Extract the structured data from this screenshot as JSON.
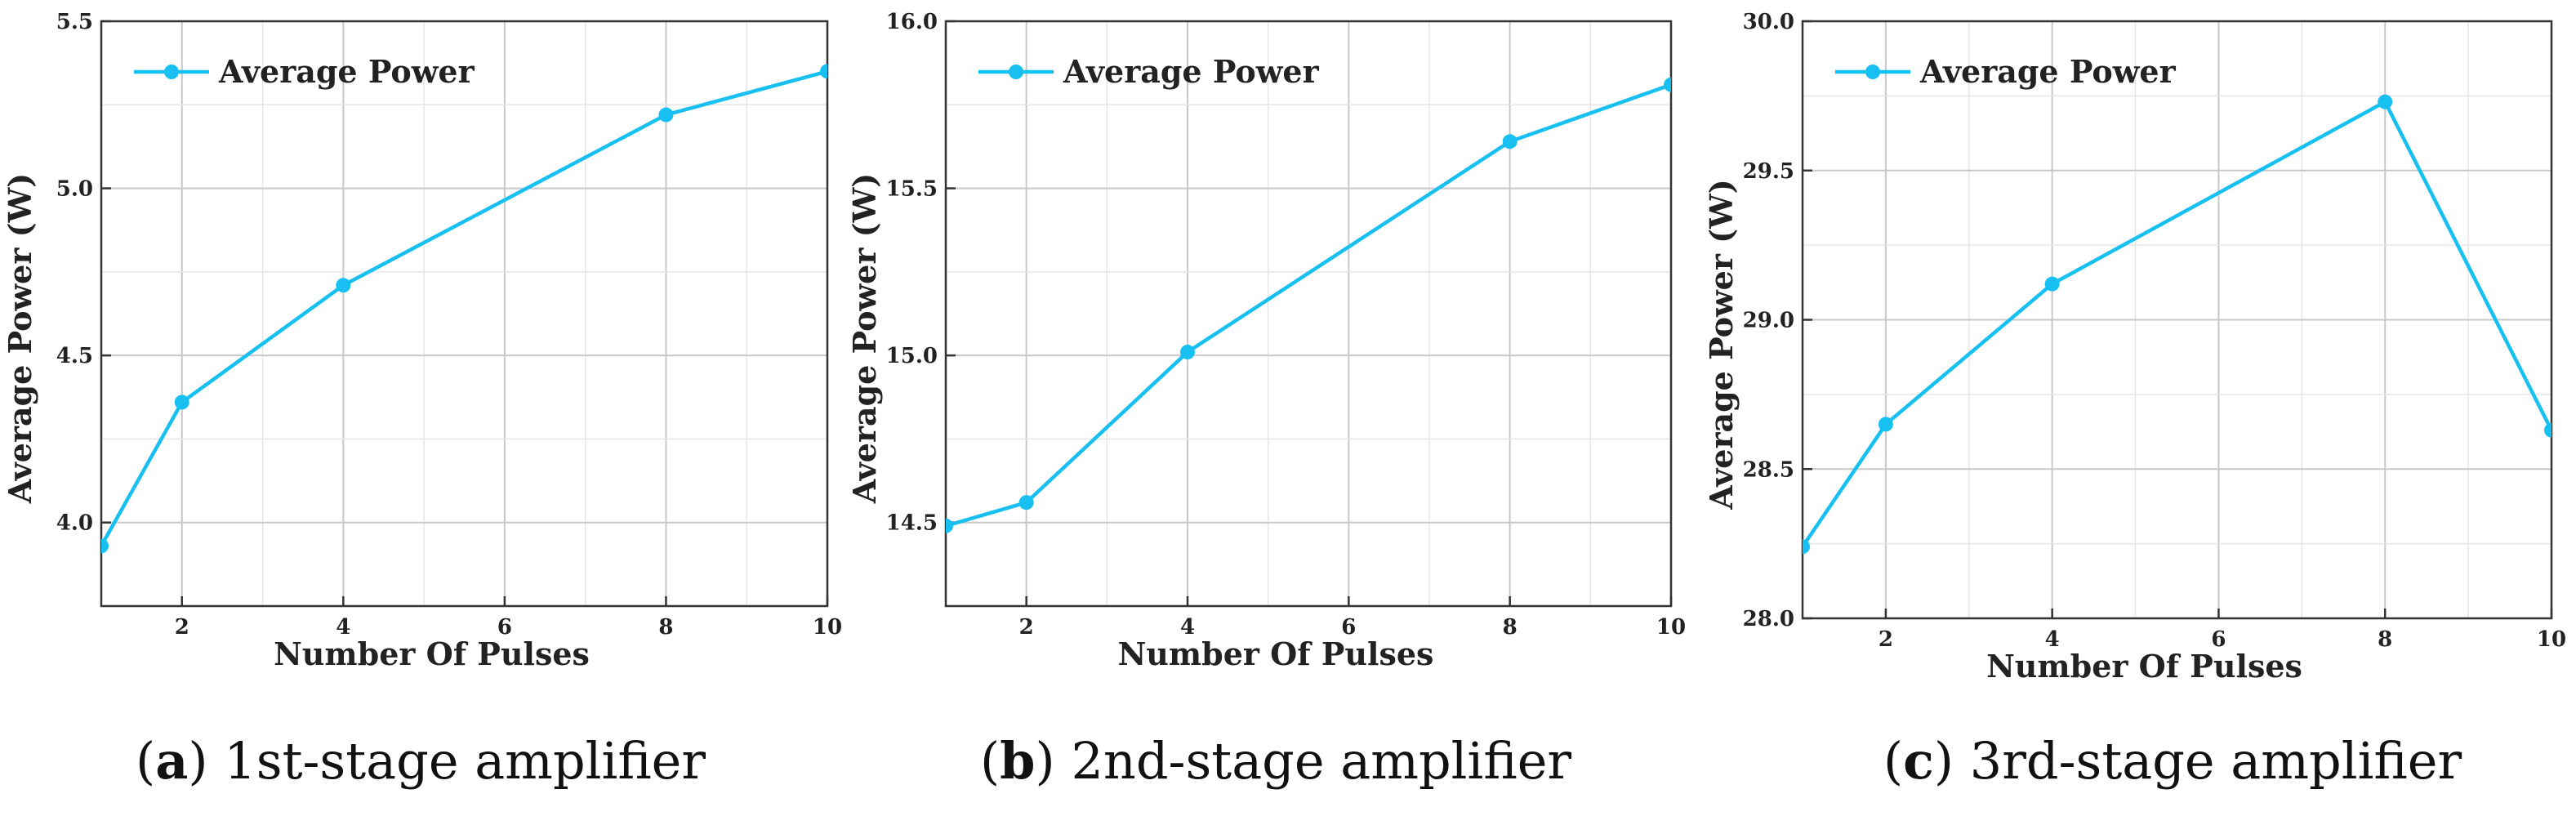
{
  "chart_data": [
    {
      "type": "line",
      "x": [
        1,
        2,
        4,
        8,
        10
      ],
      "series": [
        {
          "name": "Average Power",
          "values": [
            3.93,
            4.36,
            4.71,
            5.22,
            5.35
          ]
        }
      ],
      "xlabel": "Number Of Pulses",
      "ylabel": "Average Power (W)",
      "xlim": [
        1,
        10
      ],
      "ylim": [
        3.75,
        5.5
      ],
      "xticks": [
        2,
        4,
        6,
        8,
        10
      ],
      "xtick_labels": [
        "2",
        "4",
        "6",
        "8",
        "10"
      ],
      "yticks": [
        4.0,
        4.5,
        5.0,
        5.5
      ],
      "ytick_labels": [
        "4.0",
        "4.5",
        "5.0",
        "5.5"
      ],
      "grid": true,
      "legend_position": "top-left",
      "line_color": "#18c0f2",
      "caption": {
        "letter": "a",
        "text": " 1st-stage amplifier"
      }
    },
    {
      "type": "line",
      "x": [
        1,
        2,
        4,
        8,
        10
      ],
      "series": [
        {
          "name": "Average Power",
          "values": [
            14.49,
            14.56,
            15.01,
            15.64,
            15.81
          ]
        }
      ],
      "xlabel": "Number Of Pulses",
      "ylabel": "Average Power (W)",
      "xlim": [
        1,
        10
      ],
      "ylim": [
        14.25,
        16.0
      ],
      "xticks": [
        2,
        4,
        6,
        8,
        10
      ],
      "xtick_labels": [
        "2",
        "4",
        "6",
        "8",
        "10"
      ],
      "yticks": [
        14.5,
        15.0,
        15.5,
        16.0
      ],
      "ytick_labels": [
        "14.5",
        "15.0",
        "15.5",
        "16.0"
      ],
      "grid": true,
      "legend_position": "top-left",
      "line_color": "#18c0f2",
      "caption": {
        "letter": "b",
        "text": " 2nd-stage amplifier"
      }
    },
    {
      "type": "line",
      "x": [
        1,
        2,
        4,
        8,
        10
      ],
      "series": [
        {
          "name": "Average Power",
          "values": [
            28.24,
            28.65,
            29.12,
            29.73,
            28.63
          ]
        }
      ],
      "xlabel": "Number Of Pulses",
      "ylabel": "Average Power (W)",
      "xlim": [
        1,
        10
      ],
      "ylim": [
        28.0,
        30.0
      ],
      "xticks": [
        2,
        4,
        6,
        8,
        10
      ],
      "xtick_labels": [
        "2",
        "4",
        "6",
        "8",
        "10"
      ],
      "yticks": [
        28.0,
        28.5,
        29.0,
        29.5,
        30.0
      ],
      "ytick_labels": [
        "28.0",
        "28.5",
        "29.0",
        "29.5",
        "30.0"
      ],
      "grid": true,
      "legend_position": "top-left",
      "line_color": "#18c0f2",
      "caption": {
        "letter": "c",
        "text": " 3rd-stage amplifier"
      }
    }
  ]
}
